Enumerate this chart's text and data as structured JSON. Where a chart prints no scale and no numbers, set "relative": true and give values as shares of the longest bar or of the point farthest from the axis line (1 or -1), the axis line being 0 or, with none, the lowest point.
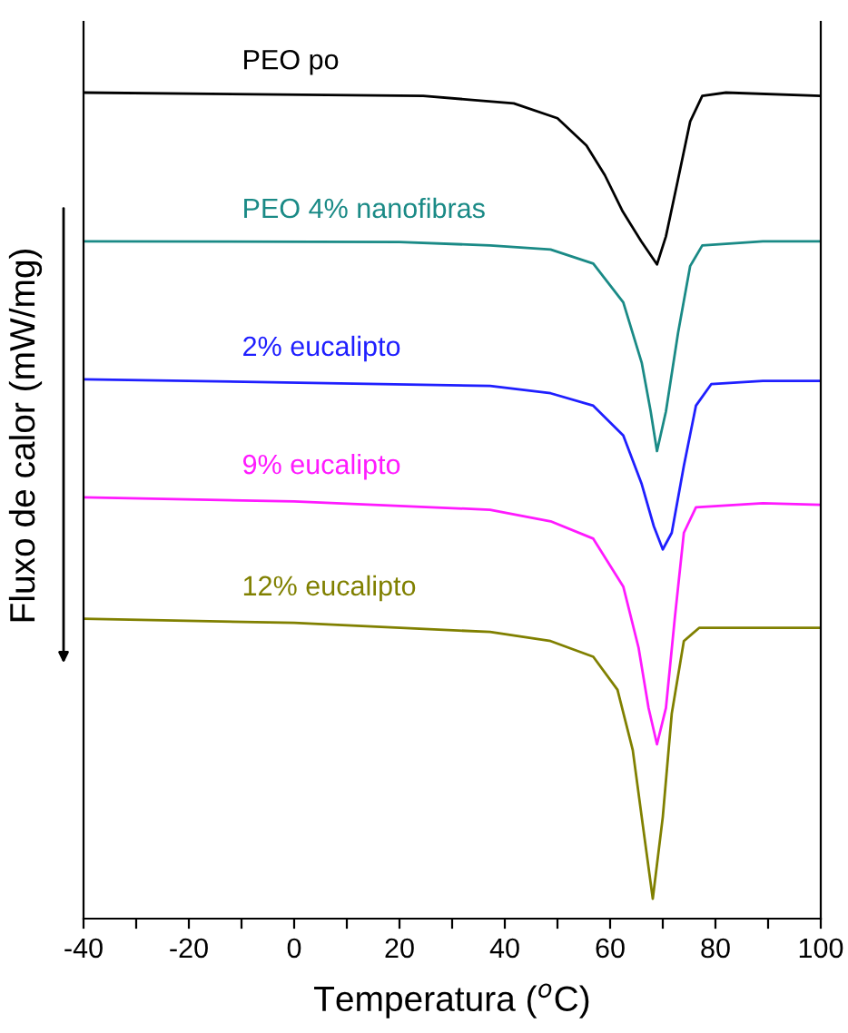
{
  "chart_data": {
    "type": "line",
    "relative": true,
    "xlabel": "Temperatura ($^{o}$C)",
    "ylabel": "Fluxo de calor (mW/mg)",
    "xlim": [
      -40,
      100
    ],
    "xticks": [
      -40,
      {
        "value": -30,
        "label": null
      },
      -20,
      {
        "value": -10,
        "label": null
      },
      0,
      {
        "value": 10,
        "label": null
      },
      20,
      {
        "value": 30,
        "label": null
      },
      40,
      {
        "value": 50,
        "label": null
      },
      60,
      {
        "value": 70,
        "label": null
      },
      80,
      {
        "value": 90,
        "label": null
      },
      100
    ],
    "grid": false,
    "legend": false,
    "marker": "none",
    "line_style": "solid",
    "tick_labels": "x",
    "series": [
      {
        "name": "PEO po",
        "color": "#000000",
        "x": [
          -40,
          24.5,
          41.7,
          50,
          55.5,
          59,
          62.4,
          65.9,
          68.9,
          70.6,
          72.8,
          75.2,
          77.5,
          82,
          100
        ],
        "values": [
          1.0,
          0.996,
          0.987,
          0.969,
          0.936,
          0.9,
          0.856,
          0.82,
          0.792,
          0.826,
          0.892,
          0.965,
          0.996,
          1.0,
          0.996
        ]
      },
      {
        "name": "PEO 4% nanofibras",
        "color": "#1a8a86",
        "x": [
          -40,
          20,
          37.2,
          48.7,
          56.8,
          62.5,
          66,
          67.7,
          68.9,
          70.6,
          72.9,
          75.2,
          77.5,
          89,
          100
        ],
        "values": [
          0.82,
          0.819,
          0.815,
          0.81,
          0.793,
          0.746,
          0.673,
          0.614,
          0.566,
          0.614,
          0.709,
          0.79,
          0.815,
          0.82,
          0.82
        ]
      },
      {
        "name": "2% eucalipto",
        "color": "#1f1fff",
        "x": [
          -40,
          37.2,
          48.7,
          56.8,
          62.5,
          66,
          68.3,
          70,
          71.7,
          74,
          76.3,
          79.2,
          89,
          100
        ],
        "values": [
          0.653,
          0.645,
          0.636,
          0.621,
          0.585,
          0.526,
          0.475,
          0.447,
          0.467,
          0.548,
          0.621,
          0.647,
          0.651,
          0.651
        ]
      },
      {
        "name": "9% eucalipto",
        "color": "#ff1aff",
        "x": [
          -40,
          0,
          37.2,
          48.7,
          56.8,
          62.5,
          65.4,
          67.3,
          68.9,
          70.6,
          72.3,
          74,
          76.3,
          89,
          100
        ],
        "values": [
          0.51,
          0.505,
          0.495,
          0.481,
          0.46,
          0.402,
          0.328,
          0.255,
          0.211,
          0.255,
          0.365,
          0.467,
          0.498,
          0.503,
          0.501
        ]
      },
      {
        "name": "12% eucalipto",
        "color": "#808000",
        "x": [
          -40,
          0,
          37.2,
          48.7,
          56.8,
          61.4,
          64.3,
          66,
          68.1,
          70,
          71.7,
          74,
          76.9,
          89,
          100
        ],
        "values": [
          0.363,
          0.358,
          0.347,
          0.336,
          0.317,
          0.277,
          0.204,
          0.123,
          0.024,
          0.123,
          0.248,
          0.336,
          0.352,
          0.352,
          0.352
        ]
      }
    ]
  }
}
